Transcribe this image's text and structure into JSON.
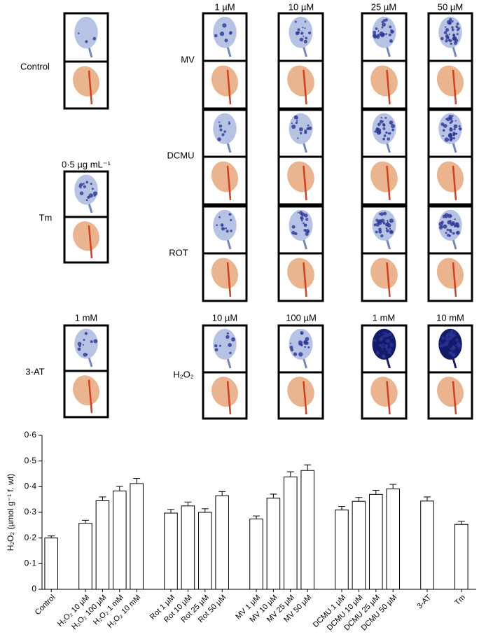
{
  "panels": {
    "control": {
      "label": "Control"
    },
    "tm": {
      "label": "Tm",
      "concentration": "0·5 µg mL⁻¹"
    },
    "at": {
      "label": "3-AT",
      "concentration": "1 mM"
    },
    "grid": {
      "concentrations": [
        "1 µM",
        "10 µM",
        "25 µM",
        "50 µM"
      ],
      "rows": [
        "MV",
        "DCMU",
        "ROT"
      ]
    },
    "h2o2": {
      "label": "H₂O₂",
      "concentrations": [
        "10 µM",
        "100 µM",
        "1 mM",
        "10 mM"
      ]
    }
  },
  "chart_data": {
    "type": "bar",
    "y_label": "H₂O₂ (µmol g⁻¹ f. wt)",
    "categories": [
      "Control",
      null,
      "H₂O₂ 10 µM",
      "H₂O₂ 100 µM",
      "H₂O₂ 1 mM",
      "H₂O₂ 10 mM",
      null,
      "Rot 1 µM",
      "Rot 10 µM",
      "Rot 25 µM",
      "Rot 50 µM",
      null,
      "MV 1 µM",
      "MV 10 µM",
      "MV 25 µM",
      "MV 50 µM",
      null,
      "DCMU 1 µM",
      "DCMU 10 µM",
      "DCMU 25 µM",
      "DCMU 50 µM",
      null,
      "3-AT",
      null,
      "Tm"
    ],
    "values": [
      0.2,
      null,
      0.257,
      0.345,
      0.383,
      0.412,
      null,
      0.297,
      0.325,
      0.3,
      0.364,
      null,
      0.274,
      0.355,
      0.438,
      0.463,
      null,
      0.309,
      0.343,
      0.37,
      0.391,
      null,
      0.344,
      null,
      0.253
    ],
    "errors": [
      0.008,
      null,
      0.012,
      0.015,
      0.018,
      0.02,
      null,
      0.014,
      0.015,
      0.014,
      0.017,
      null,
      0.012,
      0.016,
      0.02,
      0.022,
      null,
      0.014,
      0.015,
      0.016,
      0.018,
      null,
      0.016,
      null,
      0.012
    ],
    "color": "#ffffff",
    "ylim": [
      0,
      0.6
    ],
    "yticks": [
      0,
      {
        "value": 0.1,
        "label": "0·1"
      },
      {
        "value": 0.2,
        "label": "0·2"
      },
      {
        "value": 0.3,
        "label": "0·3"
      },
      {
        "value": 0.4,
        "label": "0·4"
      },
      {
        "value": 0.5,
        "label": "0·5"
      },
      {
        "value": 0.6,
        "label": "0·6"
      }
    ]
  }
}
